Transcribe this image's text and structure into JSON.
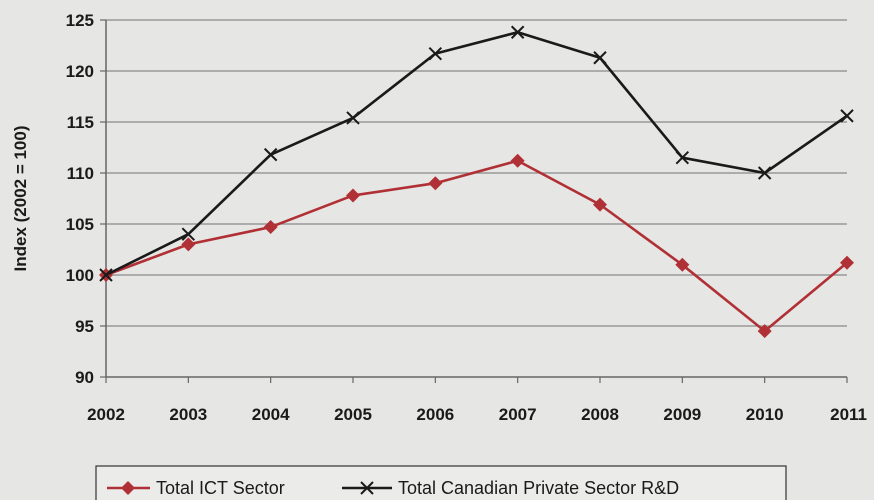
{
  "chart_data": {
    "type": "line",
    "title": "",
    "xlabel": "",
    "ylabel": "Index (2002 = 100)",
    "ylim": [
      90,
      125
    ],
    "yticks": [
      90,
      95,
      100,
      105,
      110,
      115,
      120,
      125
    ],
    "categories": [
      "2002",
      "2003",
      "2004",
      "2005",
      "2006",
      "2007",
      "2008",
      "2009",
      "2010",
      "2011"
    ],
    "grid": true,
    "legend_position": "bottom",
    "series": [
      {
        "name": "Total ICT Sector",
        "marker": "diamond",
        "color": "#b03035",
        "values": [
          100,
          103,
          104.7,
          107.8,
          109,
          111.2,
          106.9,
          101,
          94.5,
          101.2
        ]
      },
      {
        "name": "Total Canadian Private Sector R&D",
        "marker": "x",
        "color": "#1a1a1a",
        "values": [
          100,
          104,
          111.8,
          115.4,
          121.7,
          123.8,
          121.3,
          111.5,
          110,
          115.6
        ]
      }
    ]
  }
}
